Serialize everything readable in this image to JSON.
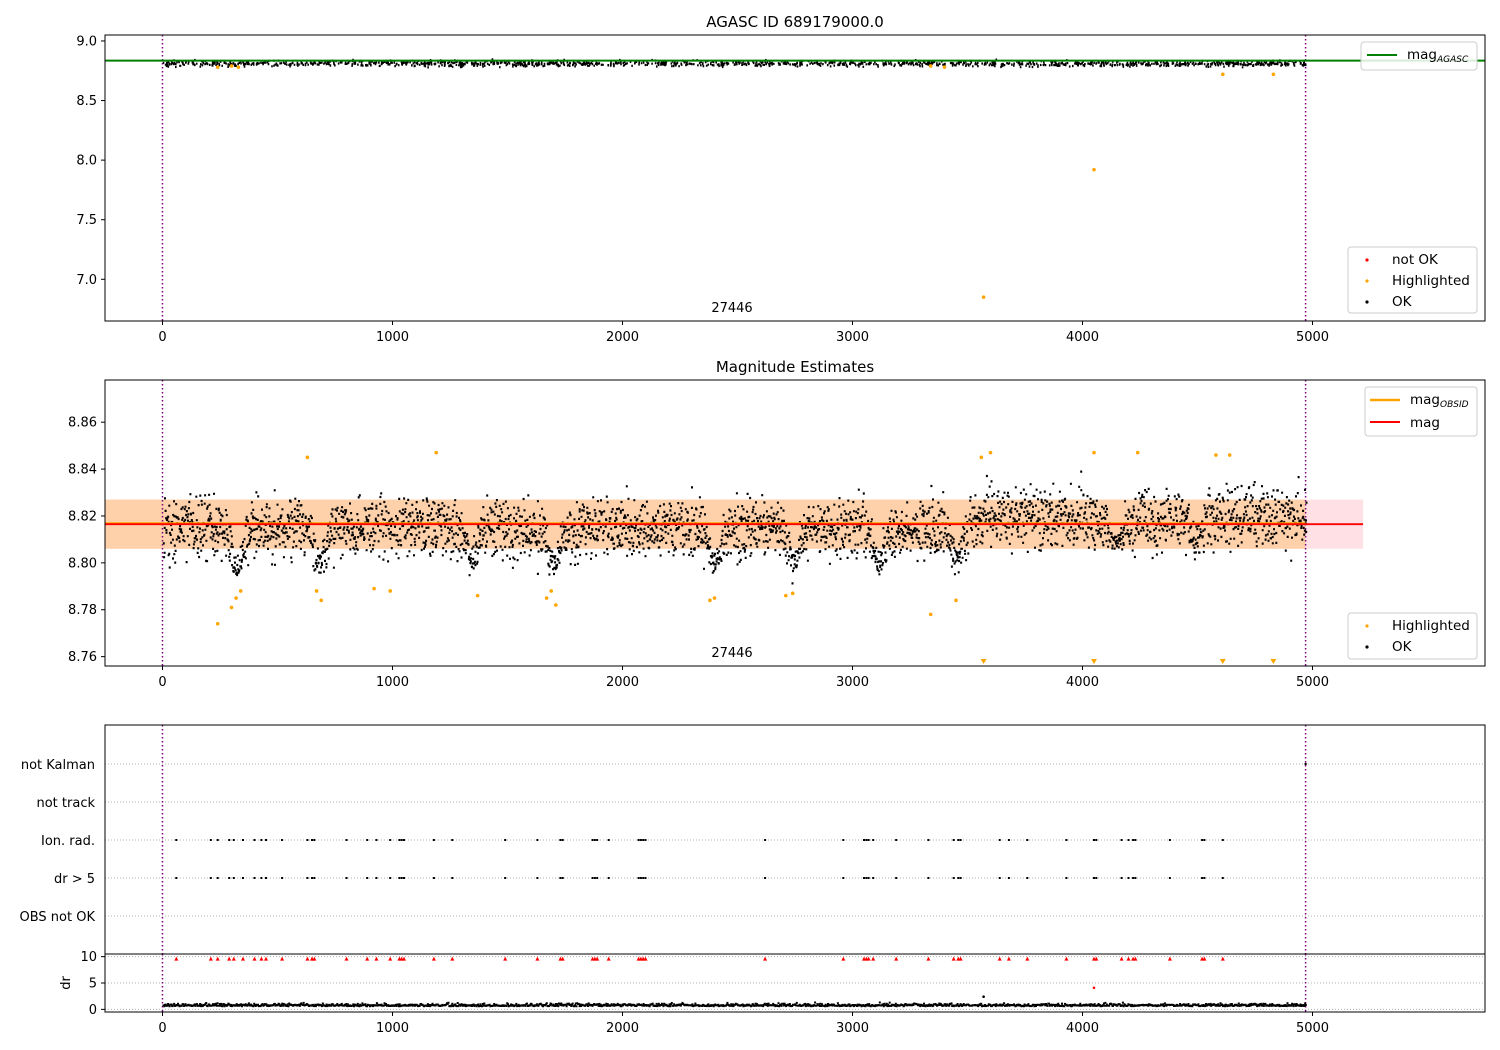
{
  "chart_data": [
    {
      "type": "scatter",
      "title": "AGASC ID 689179000.0",
      "xlabel": "",
      "ylabel": "",
      "xlim": [
        -250,
        5750
      ],
      "ylim": [
        6.65,
        9.05
      ],
      "x_ticks": [
        0,
        1000,
        2000,
        3000,
        4000,
        5000
      ],
      "y_ticks": [
        "7.0",
        "7.5",
        "8.0",
        "8.5",
        "9.0"
      ],
      "vlines": [
        0,
        4970
      ],
      "vline_color": "#800080",
      "obsid_label": {
        "text": "27446",
        "x": 2480
      },
      "lines": [
        {
          "name": "mag",
          "subscript": "AGASC",
          "value": 8.835,
          "x_range": [
            -250,
            5750
          ],
          "color": "#008000"
        }
      ],
      "series": [
        {
          "name": "not OK",
          "color": "#ff0000",
          "values": []
        },
        {
          "name": "Highlighted",
          "color": "#ffa500",
          "points": [
            [
              240,
              8.78
            ],
            [
              300,
              8.79
            ],
            [
              330,
              8.78
            ],
            [
              3340,
              8.79
            ],
            [
              3400,
              8.78
            ],
            [
              4610,
              8.72
            ],
            [
              4830,
              8.72
            ],
            [
              4050,
              7.92
            ],
            [
              3570,
              6.85
            ]
          ]
        },
        {
          "name": "OK",
          "color": "#000000",
          "band": {
            "x_range": [
              0,
              4970
            ],
            "center": 8.81,
            "spread": 0.03
          }
        }
      ],
      "legend": {
        "upper": "top-right",
        "lower": "bottom-right"
      }
    },
    {
      "type": "scatter",
      "title": "Magnitude Estimates",
      "xlabel": "",
      "ylabel": "",
      "xlim": [
        -250,
        5750
      ],
      "ylim": [
        8.756,
        8.878
      ],
      "x_ticks": [
        0,
        1000,
        2000,
        3000,
        4000,
        5000
      ],
      "y_ticks": [
        "8.76",
        "8.78",
        "8.80",
        "8.82",
        "8.84",
        "8.86"
      ],
      "vlines": [
        0,
        4970
      ],
      "vline_color": "#800080",
      "obsid_label": {
        "text": "27446",
        "x": 2480
      },
      "bands": [
        {
          "x_range": [
            -250,
            5220
          ],
          "y_range": [
            8.806,
            8.827
          ],
          "color": "#ff9aa8",
          "opacity": 0.3
        },
        {
          "x_range": [
            -250,
            4970
          ],
          "y_range": [
            8.806,
            8.827
          ],
          "color": "#ffa500",
          "opacity": 0.25
        }
      ],
      "lines": [
        {
          "name": "mag",
          "subscript": "OBSID",
          "value": 8.8168,
          "x_range": [
            -250,
            4970
          ],
          "color": "#ffa500"
        },
        {
          "name": "mag",
          "subscript": "",
          "value": 8.8165,
          "x_range": [
            -250,
            5220
          ],
          "color": "#ff0000"
        }
      ],
      "series": [
        {
          "name": "Highlighted",
          "color": "#ffa500",
          "points": [
            [
              240,
              8.774
            ],
            [
              300,
              8.781
            ],
            [
              320,
              8.785
            ],
            [
              340,
              8.788
            ],
            [
              630,
              8.845
            ],
            [
              670,
              8.788
            ],
            [
              690,
              8.784
            ],
            [
              920,
              8.789
            ],
            [
              990,
              8.788
            ],
            [
              1190,
              8.847
            ],
            [
              1370,
              8.786
            ],
            [
              1670,
              8.785
            ],
            [
              1690,
              8.788
            ],
            [
              1710,
              8.782
            ],
            [
              2380,
              8.784
            ],
            [
              2400,
              8.785
            ],
            [
              2710,
              8.786
            ],
            [
              2740,
              8.787
            ],
            [
              3340,
              8.778
            ],
            [
              3450,
              8.784
            ],
            [
              3560,
              8.845
            ],
            [
              3600,
              8.847
            ],
            [
              4050,
              8.847
            ],
            [
              4240,
              8.847
            ],
            [
              4580,
              8.846
            ],
            [
              4640,
              8.846
            ]
          ],
          "clipped_below": [
            3570,
            4050,
            4610,
            4830
          ]
        },
        {
          "name": "OK",
          "color": "#000000",
          "dips": [
            [
              320,
              8.793
            ],
            [
              680,
              8.797
            ],
            [
              1340,
              8.799
            ],
            [
              1700,
              8.795
            ],
            [
              2400,
              8.797
            ],
            [
              2740,
              8.797
            ],
            [
              3110,
              8.797
            ],
            [
              3450,
              8.799
            ],
            [
              4150,
              8.806
            ],
            [
              4490,
              8.806
            ]
          ],
          "base": 8.815,
          "x_range": [
            0,
            4970
          ]
        }
      ],
      "legend": {
        "upper": "top-right",
        "lower": "bottom-right"
      }
    },
    {
      "type": "scatter",
      "title": "",
      "xlabel": "",
      "ylabel": "",
      "xlim": [
        -250,
        5750
      ],
      "categories": [
        "not Kalman",
        "not track",
        "Ion. rad.",
        "dr > 5",
        "OBS not OK"
      ],
      "vlines": [
        0,
        4970
      ],
      "vline_color": "#800080",
      "flag_x": [
        60,
        210,
        240,
        290,
        310,
        350,
        400,
        430,
        450,
        520,
        630,
        650,
        660,
        800,
        890,
        930,
        990,
        1030,
        1040,
        1050,
        1180,
        1260,
        1490,
        1630,
        1730,
        1740,
        1870,
        1880,
        1890,
        1940,
        2070,
        2080,
        2090,
        2100,
        2620,
        2960,
        3050,
        3060,
        3070,
        3090,
        3190,
        3330,
        3440,
        3460,
        3470,
        3640,
        3680,
        3760,
        3930,
        4050,
        4060,
        4170,
        4200,
        4220,
        4230,
        4380,
        4520,
        4530,
        4610
      ],
      "not_kalman_x": [
        4970
      ]
    },
    {
      "type": "scatter",
      "title": "",
      "xlabel": "",
      "ylabel": "dr",
      "xlim": [
        -250,
        5750
      ],
      "ylim": [
        -0.5,
        10.5
      ],
      "x_ticks": [
        0,
        1000,
        2000,
        3000,
        4000,
        5000
      ],
      "y_ticks": [
        "0",
        "5",
        "10"
      ],
      "vlines": [
        0,
        4970
      ],
      "vline_color": "#800080",
      "clipped_at": 10,
      "extra_points": [
        [
          3570,
          2.4
        ],
        [
          4050,
          4.1
        ]
      ],
      "base": 0.6
    }
  ]
}
